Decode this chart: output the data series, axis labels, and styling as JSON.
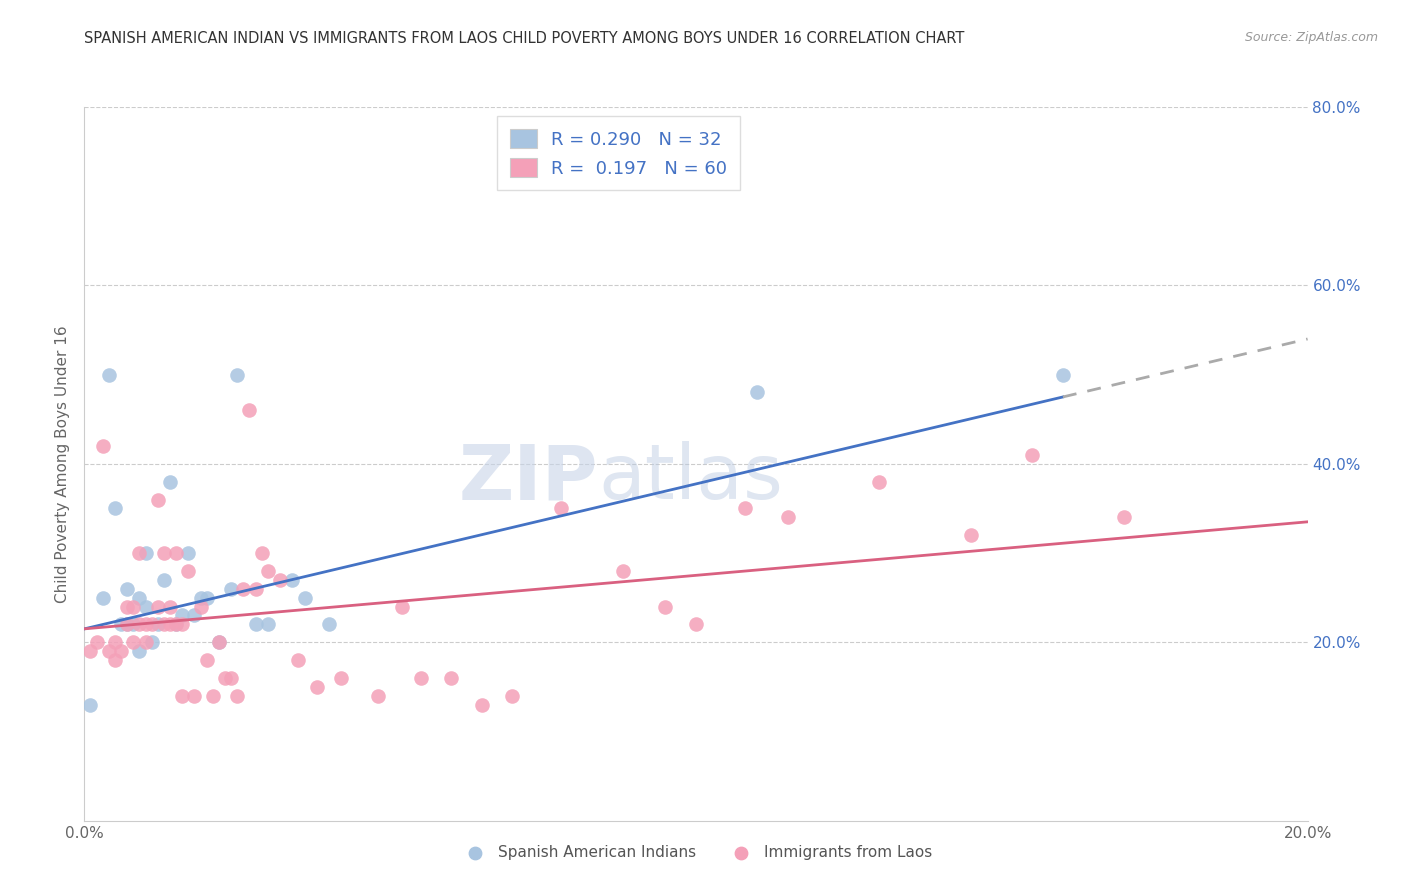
{
  "title": "SPANISH AMERICAN INDIAN VS IMMIGRANTS FROM LAOS CHILD POVERTY AMONG BOYS UNDER 16 CORRELATION CHART",
  "source": "Source: ZipAtlas.com",
  "ylabel": "Child Poverty Among Boys Under 16",
  "xlim": [
    0.0,
    0.2
  ],
  "ylim": [
    0.0,
    0.8
  ],
  "xticks": [
    0.0,
    0.05,
    0.1,
    0.15,
    0.2
  ],
  "xticklabels": [
    "0.0%",
    "",
    "",
    "",
    "20.0%"
  ],
  "yticks_right": [
    0.2,
    0.4,
    0.6,
    0.8
  ],
  "yticklabels_right": [
    "20.0%",
    "40.0%",
    "60.0%",
    "80.0%"
  ],
  "legend_label1": "Spanish American Indians",
  "legend_label2": "Immigrants from Laos",
  "R1": 0.29,
  "N1": 32,
  "R2": 0.197,
  "N2": 60,
  "color1": "#a8c4e0",
  "color2": "#f4a0b8",
  "line1_color": "#4472c4",
  "line2_color": "#d96080",
  "line1_x0": 0.0,
  "line1_y0": 0.215,
  "line1_x1": 0.16,
  "line1_y1": 0.475,
  "line1_dash_x1": 0.2,
  "line1_dash_y1": 0.54,
  "line2_x0": 0.0,
  "line2_y0": 0.215,
  "line2_x1": 0.2,
  "line2_y1": 0.335,
  "blue_points_x": [
    0.001,
    0.003,
    0.004,
    0.005,
    0.006,
    0.007,
    0.007,
    0.008,
    0.009,
    0.009,
    0.01,
    0.01,
    0.011,
    0.012,
    0.013,
    0.014,
    0.015,
    0.016,
    0.017,
    0.018,
    0.019,
    0.02,
    0.022,
    0.024,
    0.025,
    0.028,
    0.03,
    0.034,
    0.036,
    0.04,
    0.11,
    0.16
  ],
  "blue_points_y": [
    0.13,
    0.25,
    0.5,
    0.35,
    0.22,
    0.22,
    0.26,
    0.22,
    0.19,
    0.25,
    0.24,
    0.3,
    0.2,
    0.22,
    0.27,
    0.38,
    0.22,
    0.23,
    0.3,
    0.23,
    0.25,
    0.25,
    0.2,
    0.26,
    0.5,
    0.22,
    0.22,
    0.27,
    0.25,
    0.22,
    0.48,
    0.5
  ],
  "pink_points_x": [
    0.001,
    0.002,
    0.003,
    0.004,
    0.005,
    0.005,
    0.006,
    0.007,
    0.007,
    0.008,
    0.008,
    0.009,
    0.009,
    0.01,
    0.01,
    0.011,
    0.012,
    0.012,
    0.013,
    0.013,
    0.014,
    0.014,
    0.015,
    0.015,
    0.016,
    0.016,
    0.017,
    0.018,
    0.019,
    0.02,
    0.021,
    0.022,
    0.023,
    0.024,
    0.025,
    0.026,
    0.027,
    0.028,
    0.029,
    0.03,
    0.032,
    0.035,
    0.038,
    0.042,
    0.048,
    0.052,
    0.055,
    0.06,
    0.065,
    0.07,
    0.078,
    0.088,
    0.095,
    0.1,
    0.108,
    0.115,
    0.13,
    0.145,
    0.155,
    0.17
  ],
  "pink_points_y": [
    0.19,
    0.2,
    0.42,
    0.19,
    0.18,
    0.2,
    0.19,
    0.22,
    0.24,
    0.2,
    0.24,
    0.22,
    0.3,
    0.2,
    0.22,
    0.22,
    0.24,
    0.36,
    0.22,
    0.3,
    0.22,
    0.24,
    0.22,
    0.3,
    0.14,
    0.22,
    0.28,
    0.14,
    0.24,
    0.18,
    0.14,
    0.2,
    0.16,
    0.16,
    0.14,
    0.26,
    0.46,
    0.26,
    0.3,
    0.28,
    0.27,
    0.18,
    0.15,
    0.16,
    0.14,
    0.24,
    0.16,
    0.16,
    0.13,
    0.14,
    0.35,
    0.28,
    0.24,
    0.22,
    0.35,
    0.34,
    0.38,
    0.32,
    0.41,
    0.34
  ]
}
